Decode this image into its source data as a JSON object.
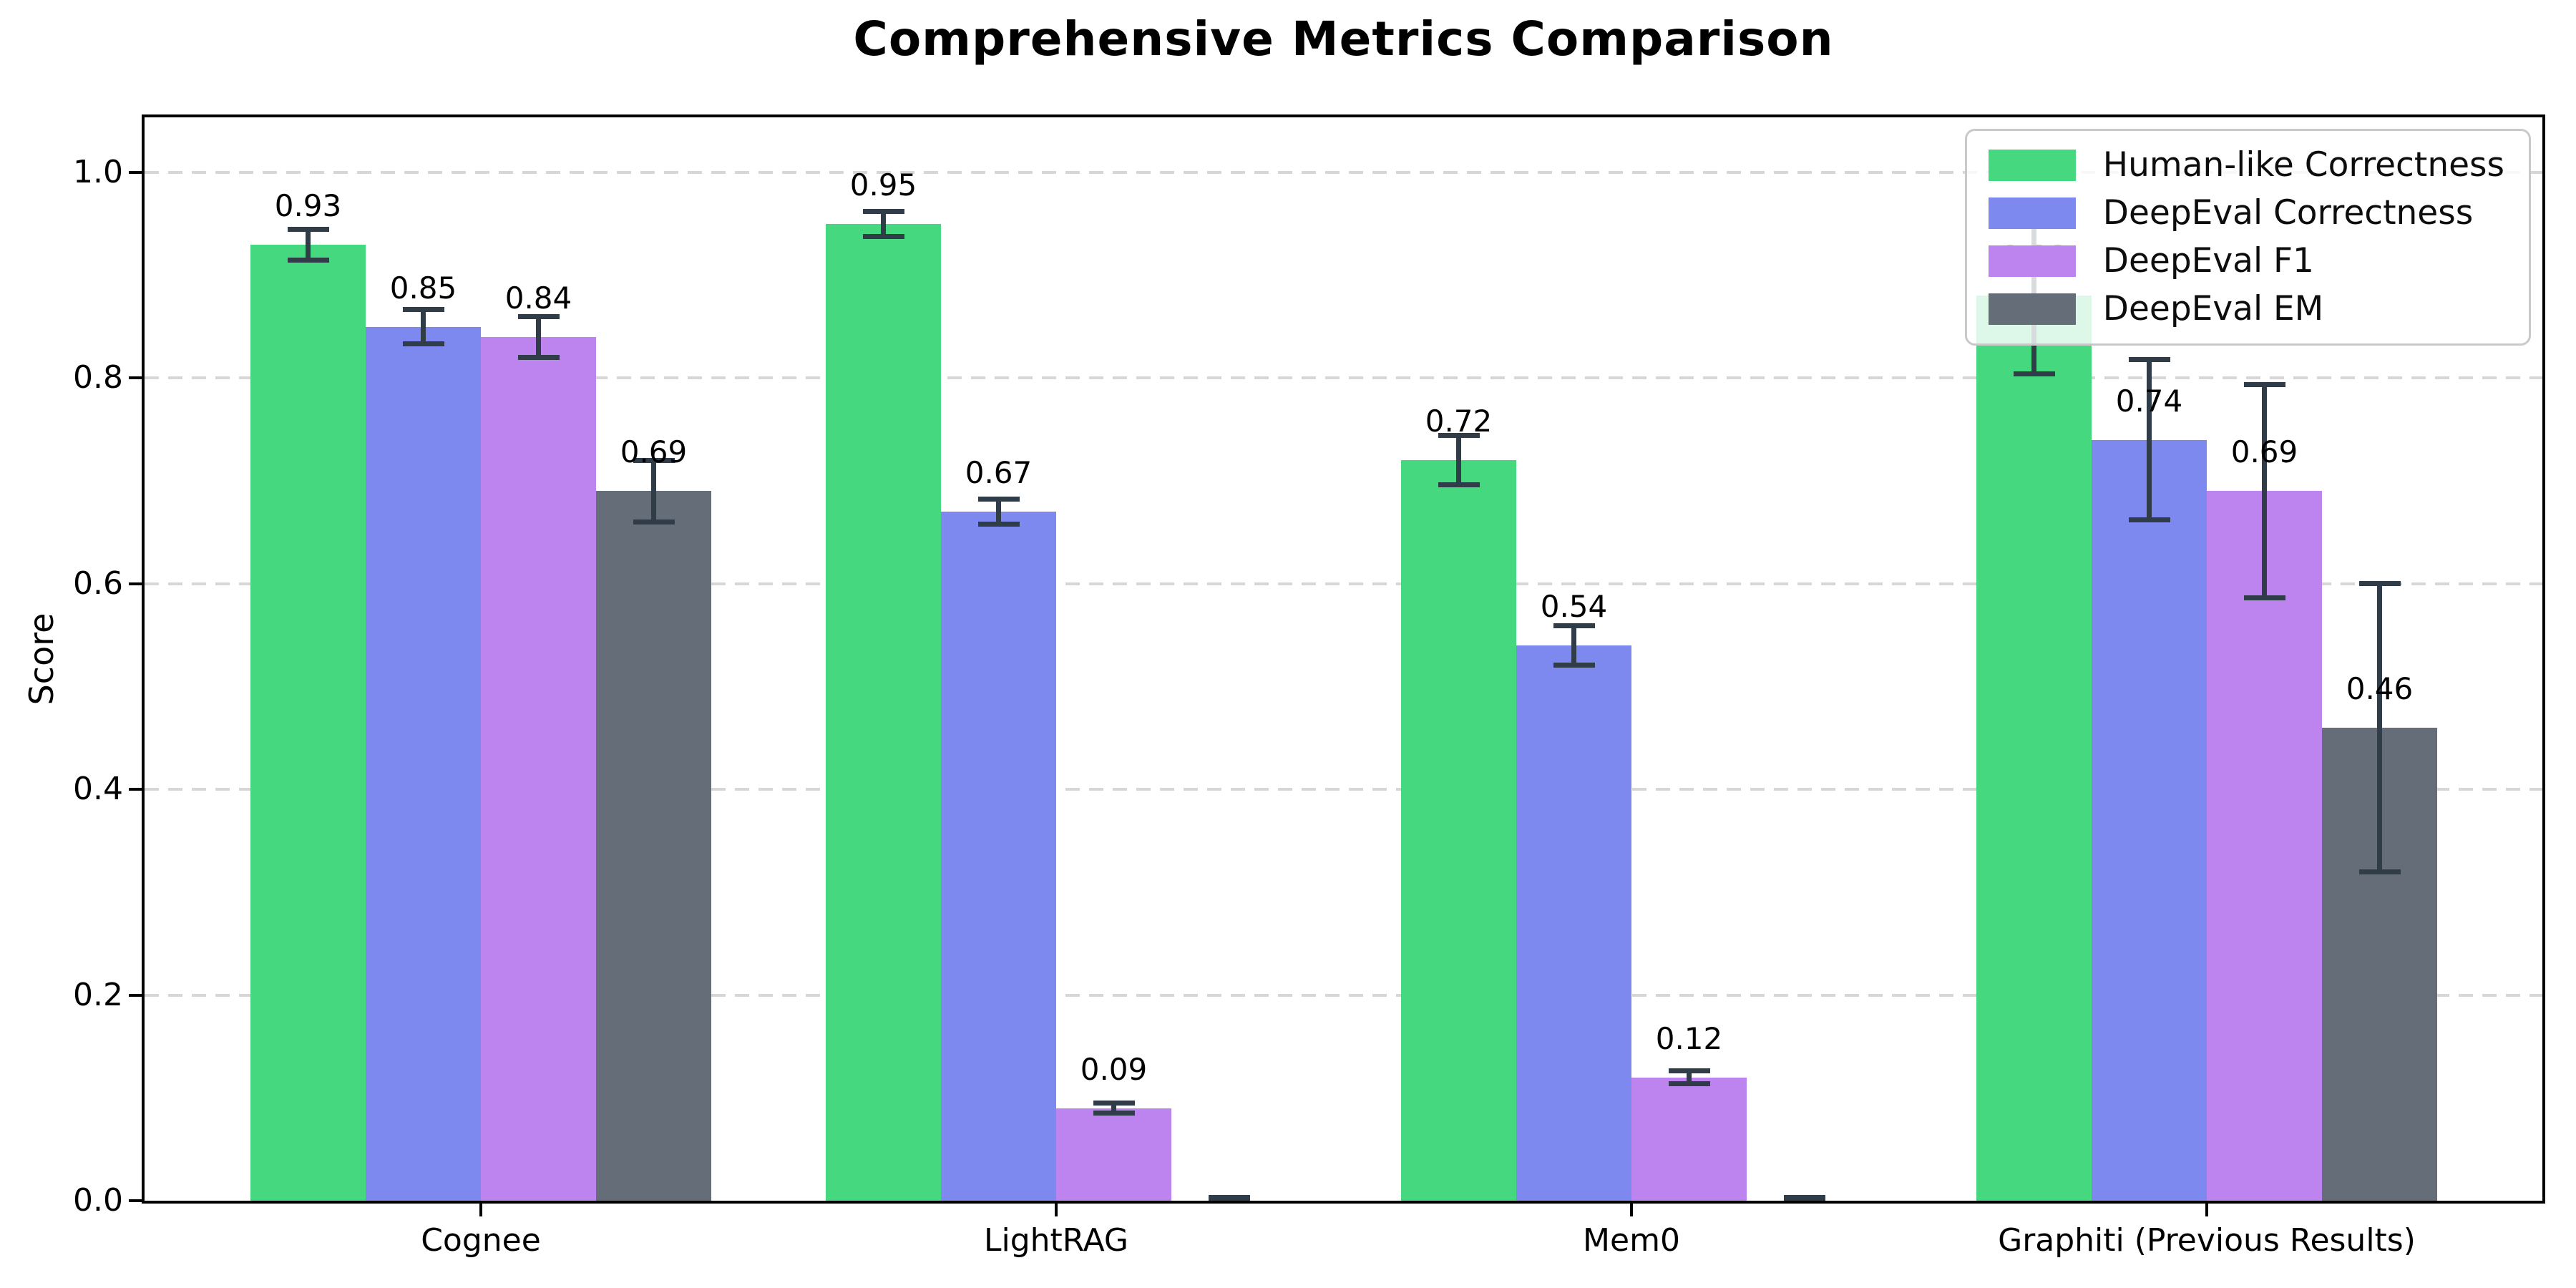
{
  "chart_data": {
    "type": "bar",
    "title": "Comprehensive Metrics Comparison",
    "xlabel": "",
    "ylabel": "Score",
    "ylim": [
      0,
      1.053
    ],
    "yticks": [
      0.0,
      0.2,
      0.4,
      0.6,
      0.8,
      1.0
    ],
    "ytick_labels": [
      "0.0",
      "0.2",
      "0.4",
      "0.6",
      "0.8",
      "1.0"
    ],
    "grid": "horizontal dashed lines at each y tick, light gray",
    "legend_position": "upper right",
    "error_bar_color": "#313c49",
    "categories": [
      "Cognee",
      "LightRAG",
      "Mem0",
      "Graphiti (Previous Results)"
    ],
    "series": [
      {
        "name": "Human-like Correctness",
        "color": "#45d87f",
        "values": [
          0.93,
          0.95,
          0.72,
          0.88
        ],
        "errors": [
          0.015,
          0.012,
          0.024,
          0.076
        ],
        "labels": [
          "0.93",
          "0.95",
          "0.72",
          "0.88"
        ]
      },
      {
        "name": "DeepEval Correctness",
        "color": "#7d89ee",
        "values": [
          0.85,
          0.67,
          0.54,
          0.74
        ],
        "errors": [
          0.017,
          0.012,
          0.019,
          0.078
        ],
        "labels": [
          "0.85",
          "0.67",
          "0.54",
          "0.74"
        ]
      },
      {
        "name": "DeepEval F1",
        "color": "#bd84f0",
        "values": [
          0.84,
          0.09,
          0.12,
          0.69
        ],
        "errors": [
          0.02,
          0.005,
          0.006,
          0.104
        ],
        "labels": [
          "0.84",
          "0.09",
          "0.12",
          "0.69"
        ]
      },
      {
        "name": "DeepEval EM",
        "color": "#656d79",
        "values": [
          0.69,
          0.0,
          0.0,
          0.46
        ],
        "errors": [
          0.03,
          0.003,
          0.003,
          0.14
        ],
        "labels": [
          "0.69",
          "",
          "",
          "0.46"
        ]
      }
    ]
  }
}
